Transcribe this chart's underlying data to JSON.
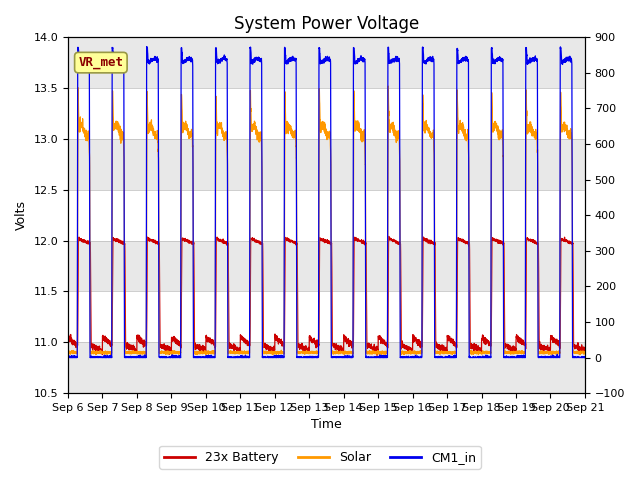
{
  "title": "System Power Voltage",
  "xlabel": "Time",
  "ylabel": "Volts",
  "ylim_left": [
    10.5,
    14.0
  ],
  "ylim_right": [
    -100,
    900
  ],
  "yticks_left": [
    10.5,
    11.0,
    11.5,
    12.0,
    12.5,
    13.0,
    13.5,
    14.0
  ],
  "yticks_right": [
    -100,
    0,
    100,
    200,
    300,
    400,
    500,
    600,
    700,
    800,
    900
  ],
  "xticklabels": [
    "Sep 6",
    "Sep 7",
    "Sep 8",
    "Sep 9",
    "Sep 10",
    "Sep 11",
    "Sep 12",
    "Sep 13",
    "Sep 14",
    "Sep 15",
    "Sep 16",
    "Sep 17",
    "Sep 18",
    "Sep 19",
    "Sep 20",
    "Sep 21"
  ],
  "num_days": 15,
  "battery_color": "#cc0000",
  "solar_color": "#ff9900",
  "cm1_color": "#0000ee",
  "legend_labels": [
    "23x Battery",
    "Solar",
    "CM1_in"
  ],
  "annotation_text": "VR_met",
  "grid_color": "#bbbbbb",
  "bg_color_light": "#f0f0f0",
  "bg_color_dark": "#d8d8d8",
  "title_fontsize": 12,
  "axis_fontsize": 9,
  "tick_fontsize": 8
}
